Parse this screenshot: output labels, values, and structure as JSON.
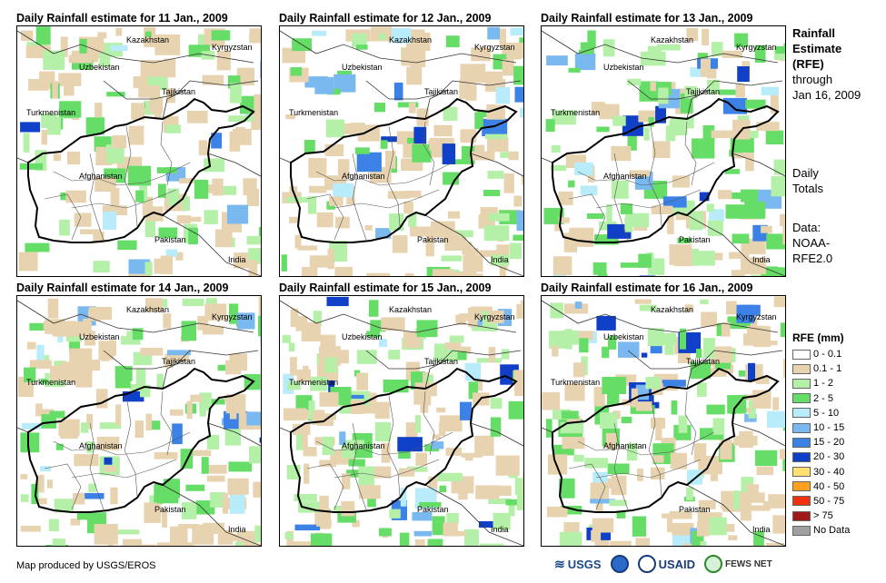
{
  "panels": [
    {
      "title": "Daily Rainfall estimate for 11 Jan., 2009"
    },
    {
      "title": "Daily Rainfall estimate for 12 Jan., 2009"
    },
    {
      "title": "Daily Rainfall estimate for 13 Jan., 2009"
    },
    {
      "title": "Daily Rainfall estimate for 14 Jan., 2009"
    },
    {
      "title": "Daily Rainfall estimate for 15 Jan., 2009"
    },
    {
      "title": "Daily Rainfall estimate for 16 Jan., 2009"
    }
  ],
  "country_labels": {
    "kazakhstan": "Kazakhstan",
    "kyrgyzstan": "Kyrgyzstan",
    "uzbekistan": "Uzbekistan",
    "tajikistan": "Tajikistan",
    "turkmenistan": "Turkmenistan",
    "afghanistan": "Afghanistan",
    "pakistan": "Pakistan",
    "india": "India"
  },
  "side": {
    "title_line1": "Rainfall",
    "title_line2": "Estimate",
    "title_line3": "(RFE)",
    "through": "through",
    "date": "Jan 16, 2009",
    "daily1": "Daily",
    "daily2": "Totals",
    "data1": "Data:",
    "data2": "NOAA-",
    "data3": "RFE2.0"
  },
  "legend": {
    "title": "RFE (mm)",
    "items": [
      {
        "label": "0 - 0.1",
        "color": "#ffffff"
      },
      {
        "label": "0.1 - 1",
        "color": "#e8d3b0"
      },
      {
        "label": "1 - 2",
        "color": "#b4f0a8"
      },
      {
        "label": "2 - 5",
        "color": "#66dd66"
      },
      {
        "label": "5 - 10",
        "color": "#b8ecfa"
      },
      {
        "label": "10 - 15",
        "color": "#7ab8f0"
      },
      {
        "label": "15 - 20",
        "color": "#3c82e6"
      },
      {
        "label": "20 - 30",
        "color": "#1040c8"
      },
      {
        "label": "30 - 40",
        "color": "#ffe070"
      },
      {
        "label": "40 - 50",
        "color": "#ffa020"
      },
      {
        "label": "50 - 75",
        "color": "#f03010"
      },
      {
        "label": "> 75",
        "color": "#a01818"
      },
      {
        "label": "No Data",
        "color": "#a0a0a0"
      }
    ]
  },
  "credit": "Map produced by USGS/EROS",
  "logos": {
    "usgs": "USGS",
    "usaid": "USAID",
    "fews": "FEWS NET"
  }
}
